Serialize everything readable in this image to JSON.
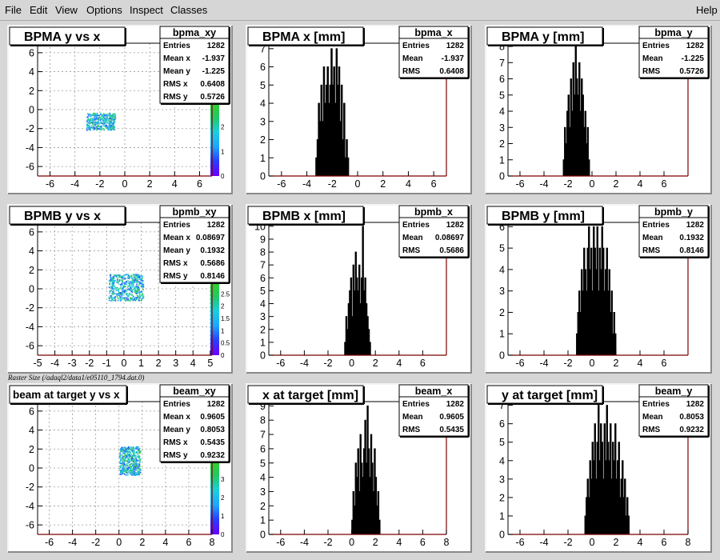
{
  "menu": {
    "file": "File",
    "edit": "Edit",
    "view": "View",
    "options": "Options",
    "inspect": "Inspect",
    "classes": "Classes",
    "help": "Help"
  },
  "raster_label": "Raster Size (/adaql2/data1/e05110_1794.dat.0)",
  "colors": {
    "background": "#d6d6d6",
    "pad": "#ffffff",
    "histogram": "#000000",
    "axis_frame": "#7a0000",
    "grid": "#9a9a9a"
  },
  "chart_data": [
    {
      "type": "heatmap",
      "title": "BPMA y vs x",
      "stats_name": "bpma_xy",
      "stats": [
        [
          "Entries",
          "1282"
        ],
        [
          "Mean x",
          "-1.937"
        ],
        [
          "Mean y",
          "-1.225"
        ],
        [
          "RMS x",
          "0.6408"
        ],
        [
          "RMS y",
          "0.5726"
        ]
      ],
      "xlim": [
        -7,
        7
      ],
      "ylim": [
        -7,
        7
      ],
      "xticks": [
        -6,
        -4,
        -2,
        0,
        2,
        4,
        6
      ],
      "yticks": [
        -6,
        -4,
        -2,
        0,
        2,
        4,
        6
      ],
      "grid": true,
      "colorbar_ticks": [
        "3",
        "2",
        "1",
        "0"
      ],
      "colorbar_max": 3,
      "blob": {
        "x_min": -3.1,
        "x_max": -0.8,
        "y_min": -2.1,
        "y_max": -0.3
      }
    },
    {
      "type": "bar",
      "title": "BPMA x [mm]",
      "stats_name": "bpma_x",
      "stats": [
        [
          "Entries",
          "1282"
        ],
        [
          "Mean",
          "-1.937"
        ],
        [
          "RMS",
          "0.6408"
        ]
      ],
      "xlim": [
        -7,
        7
      ],
      "ylim": [
        0,
        7.3
      ],
      "xticks": [
        -6,
        -4,
        -2,
        0,
        2,
        4,
        6
      ],
      "yticks": [
        0,
        1,
        2,
        3,
        4,
        5,
        6,
        7
      ],
      "grid": false,
      "x_start": -3.3,
      "bin_width": 0.1,
      "values": [
        1,
        2,
        4,
        3,
        5,
        3,
        6,
        4,
        5,
        6,
        4,
        5,
        7,
        5,
        6,
        4,
        7,
        5,
        6,
        3,
        5,
        2,
        4,
        1,
        2,
        1
      ]
    },
    {
      "type": "bar",
      "title": "BPMA y [mm]",
      "stats_name": "bpma_y",
      "stats": [
        [
          "Entries",
          "1282"
        ],
        [
          "Mean",
          "-1.225"
        ],
        [
          "RMS",
          "0.5726"
        ]
      ],
      "xlim": [
        -7,
        8
      ],
      "ylim": [
        0,
        8.2
      ],
      "xticks": [
        -6,
        -4,
        -2,
        0,
        2,
        4,
        6
      ],
      "yticks": [
        0,
        1,
        2,
        3,
        4,
        5,
        6,
        7,
        8
      ],
      "grid": false,
      "x_start": -2.4,
      "bin_width": 0.1,
      "values": [
        1,
        3,
        2,
        4,
        5,
        3,
        6,
        4,
        7,
        5,
        8,
        6,
        5,
        7,
        4,
        6,
        5,
        3,
        4,
        2,
        3,
        1
      ]
    },
    {
      "type": "heatmap",
      "title": "BPMB y vs x",
      "stats_name": "bpmb_xy",
      "stats": [
        [
          "Entries",
          "1282"
        ],
        [
          "Mean x",
          "0.08697"
        ],
        [
          "Mean y",
          "0.1932"
        ],
        [
          "RMS x",
          "0.5686"
        ],
        [
          "RMS y",
          "0.8146"
        ]
      ],
      "xlim": [
        -5,
        5.1
      ],
      "ylim": [
        -7,
        7
      ],
      "xticks": [
        -5,
        -4,
        -3,
        -2,
        -1,
        0,
        1,
        2,
        3,
        4,
        5
      ],
      "yticks": [
        -6,
        -4,
        -2,
        0,
        2,
        4,
        6
      ],
      "grid": true,
      "colorbar_ticks": [
        "2.5",
        "2",
        "1.5",
        "1",
        "0.5",
        "0"
      ],
      "colorbar_max": 3,
      "blob": {
        "x_min": -0.9,
        "x_max": 1.1,
        "y_min": -1.2,
        "y_max": 1.6
      }
    },
    {
      "type": "bar",
      "title": "BPMB x [mm]",
      "stats_name": "bpmb_x",
      "stats": [
        [
          "Entries",
          "1282"
        ],
        [
          "Mean",
          "0.08697"
        ],
        [
          "RMS",
          "0.5686"
        ]
      ],
      "xlim": [
        -7,
        8
      ],
      "ylim": [
        0,
        10.3
      ],
      "xticks": [
        -6,
        -4,
        -2,
        0,
        2,
        4,
        6
      ],
      "yticks": [
        0,
        1,
        2,
        3,
        4,
        5,
        6,
        7,
        8,
        9,
        10
      ],
      "grid": false,
      "x_start": -0.6,
      "bin_width": 0.1,
      "values": [
        1,
        3,
        2,
        4,
        5,
        6,
        3,
        7,
        5,
        8,
        6,
        5,
        7,
        4,
        6,
        10,
        5,
        6,
        4,
        3,
        2,
        1
      ]
    },
    {
      "type": "bar",
      "title": "BPMB y [mm]",
      "stats_name": "bpmb_y",
      "stats": [
        [
          "Entries",
          "1282"
        ],
        [
          "Mean",
          "0.1932"
        ],
        [
          "RMS",
          "0.8146"
        ]
      ],
      "xlim": [
        -7,
        8
      ],
      "ylim": [
        0,
        6.2
      ],
      "xticks": [
        -6,
        -4,
        -2,
        0,
        2,
        4,
        6
      ],
      "yticks": [
        0,
        1,
        2,
        3,
        4,
        5,
        6
      ],
      "grid": false,
      "x_start": -1.3,
      "bin_width": 0.1,
      "values": [
        1,
        2,
        3,
        2,
        4,
        3,
        5,
        4,
        3,
        5,
        6,
        4,
        5,
        3,
        6,
        5,
        4,
        6,
        3,
        5,
        4,
        6,
        5,
        3,
        4,
        5,
        3,
        4,
        2,
        3,
        1,
        2,
        1
      ]
    },
    {
      "type": "heatmap",
      "title": "beam at target y vs x",
      "stats_name": "beam_xy",
      "stats": [
        [
          "Entries",
          "1282"
        ],
        [
          "Mean x",
          "0.9605"
        ],
        [
          "Mean y",
          "0.8053"
        ],
        [
          "RMS x",
          "0.5435"
        ],
        [
          "RMS y",
          "0.9232"
        ]
      ],
      "xlim": [
        -7,
        8
      ],
      "ylim": [
        -7,
        7
      ],
      "xticks": [
        -6,
        -4,
        -2,
        0,
        2,
        4,
        6,
        8
      ],
      "yticks": [
        -6,
        -4,
        -2,
        0,
        2,
        4,
        6
      ],
      "grid": true,
      "colorbar_ticks": [
        "4",
        "3",
        "2",
        "1",
        "0"
      ],
      "colorbar_max": 4,
      "blob": {
        "x_min": 0.0,
        "x_max": 1.8,
        "y_min": -0.7,
        "y_max": 2.3
      }
    },
    {
      "type": "bar",
      "title": "x at target [mm]",
      "stats_name": "beam_x",
      "stats": [
        [
          "Entries",
          "1282"
        ],
        [
          "Mean",
          "0.9605"
        ],
        [
          "RMS",
          "0.5435"
        ]
      ],
      "xlim": [
        -7,
        8
      ],
      "ylim": [
        0,
        9.3
      ],
      "xticks": [
        -6,
        -4,
        -2,
        0,
        2,
        4,
        6,
        8
      ],
      "yticks": [
        0,
        1,
        2,
        3,
        4,
        5,
        6,
        7,
        8,
        9
      ],
      "grid": false,
      "x_start": 0.0,
      "bin_width": 0.1,
      "values": [
        1,
        3,
        2,
        5,
        4,
        6,
        3,
        7,
        5,
        4,
        6,
        8,
        5,
        9,
        6,
        4,
        7,
        5,
        3,
        6,
        4,
        2,
        3,
        1
      ]
    },
    {
      "type": "bar",
      "title": "y at target [mm]",
      "stats_name": "beam_y",
      "stats": [
        [
          "Entries",
          "1282"
        ],
        [
          "Mean",
          "0.8053"
        ],
        [
          "RMS",
          "0.9232"
        ]
      ],
      "xlim": [
        -7,
        8
      ],
      "ylim": [
        0,
        7.2
      ],
      "xticks": [
        -6,
        -4,
        -2,
        0,
        2,
        4,
        6,
        8
      ],
      "yticks": [
        0,
        1,
        2,
        3,
        4,
        5,
        6,
        7
      ],
      "grid": false,
      "x_start": -0.6,
      "bin_width": 0.1,
      "values": [
        1,
        2,
        3,
        2,
        4,
        3,
        5,
        4,
        6,
        3,
        5,
        7,
        4,
        6,
        5,
        3,
        6,
        4,
        7,
        5,
        4,
        6,
        3,
        5,
        4,
        6,
        3,
        4,
        5,
        2,
        3,
        4,
        2,
        3,
        1,
        2,
        1
      ]
    }
  ]
}
